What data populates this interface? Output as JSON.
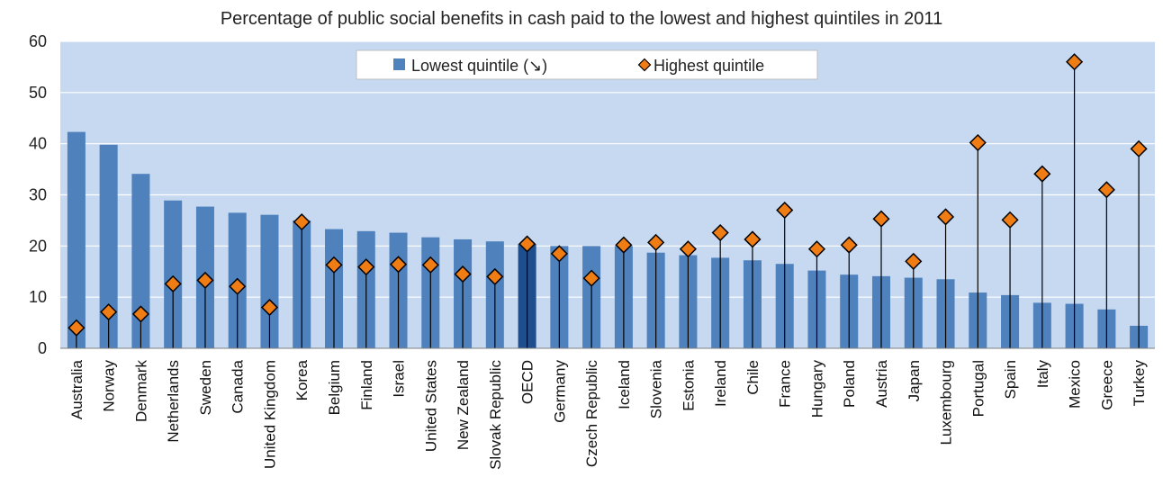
{
  "chart_data": {
    "type": "bar",
    "title": "Percentage of public social benefits in cash paid to the lowest and highest quintiles in 2011",
    "xlabel": "",
    "ylabel": "",
    "ylim": [
      0,
      60
    ],
    "yticks": [
      0,
      10,
      20,
      30,
      40,
      50,
      60
    ],
    "grid": true,
    "legend_position": "top-center",
    "categories": [
      "Australia",
      "Norway",
      "Denmark",
      "Netherlands",
      "Sweden",
      "Canada",
      "United Kingdom",
      "Korea",
      "Belgium",
      "Finland",
      "Israel",
      "United States",
      "New Zealand",
      "Slovak Republic",
      "OECD",
      "Germany",
      "Czech Republic",
      "Iceland",
      "Slovenia",
      "Estonia",
      "Ireland",
      "Chile",
      "France",
      "Hungary",
      "Poland",
      "Austria",
      "Japan",
      "Luxembourg",
      "Portugal",
      "Spain",
      "Italy",
      "Mexico",
      "Greece",
      "Turkey"
    ],
    "highlight_category": "OECD",
    "series": [
      {
        "name": "Lowest quintile (↘)",
        "type": "bar",
        "color": "#4f81bd",
        "highlight_color": "#1f4e8c",
        "values": [
          42.3,
          39.8,
          34.1,
          28.9,
          27.7,
          26.5,
          26.1,
          25.0,
          23.3,
          22.9,
          22.6,
          21.7,
          21.3,
          20.9,
          20.4,
          20.0,
          20.0,
          20.0,
          18.7,
          18.2,
          17.7,
          17.2,
          16.5,
          15.2,
          14.4,
          14.1,
          13.8,
          13.5,
          10.9,
          10.4,
          8.9,
          8.7,
          7.6,
          4.4
        ]
      },
      {
        "name": "Highest quintile",
        "type": "marker",
        "color": "#f07c14",
        "values": [
          4.0,
          7.1,
          6.7,
          12.6,
          13.3,
          12.1,
          8.0,
          24.7,
          16.3,
          15.9,
          16.4,
          16.3,
          14.5,
          14.0,
          20.4,
          18.5,
          13.7,
          20.2,
          20.7,
          19.4,
          22.6,
          21.3,
          27.0,
          19.4,
          20.2,
          25.3,
          17.0,
          25.7,
          40.2,
          25.1,
          34.1,
          56.0,
          31.0,
          39.0
        ]
      }
    ]
  }
}
